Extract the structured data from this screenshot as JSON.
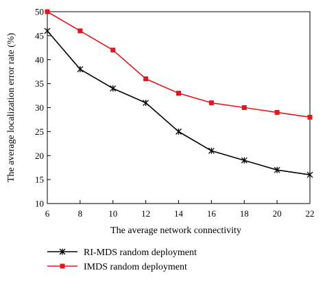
{
  "chart_data": {
    "type": "line",
    "xlabel": "The average network connectivity",
    "ylabel": "The average localization error rate (%)",
    "xlim": [
      6,
      22
    ],
    "ylim": [
      10,
      50
    ],
    "xticks": [
      "6",
      "8",
      "10",
      "12",
      "14",
      "16",
      "18",
      "20",
      "22"
    ],
    "yticks": [
      "10",
      "15",
      "20",
      "25",
      "30",
      "35",
      "40",
      "45",
      "50"
    ],
    "grid": false,
    "legend_position": "bottom-left",
    "x": [
      6,
      8,
      10,
      12,
      14,
      16,
      18,
      20,
      22
    ],
    "series": [
      {
        "name": "RI-MDS random deployment",
        "values": [
          46,
          38,
          34,
          31,
          25,
          21,
          19,
          17,
          16
        ],
        "color": "#000000",
        "marker": "asterisk"
      },
      {
        "name": "IMDS random deployment",
        "values": [
          50,
          46,
          42,
          36,
          33,
          31,
          30,
          29,
          28
        ],
        "color": "#e8141a",
        "marker": "square"
      }
    ]
  }
}
